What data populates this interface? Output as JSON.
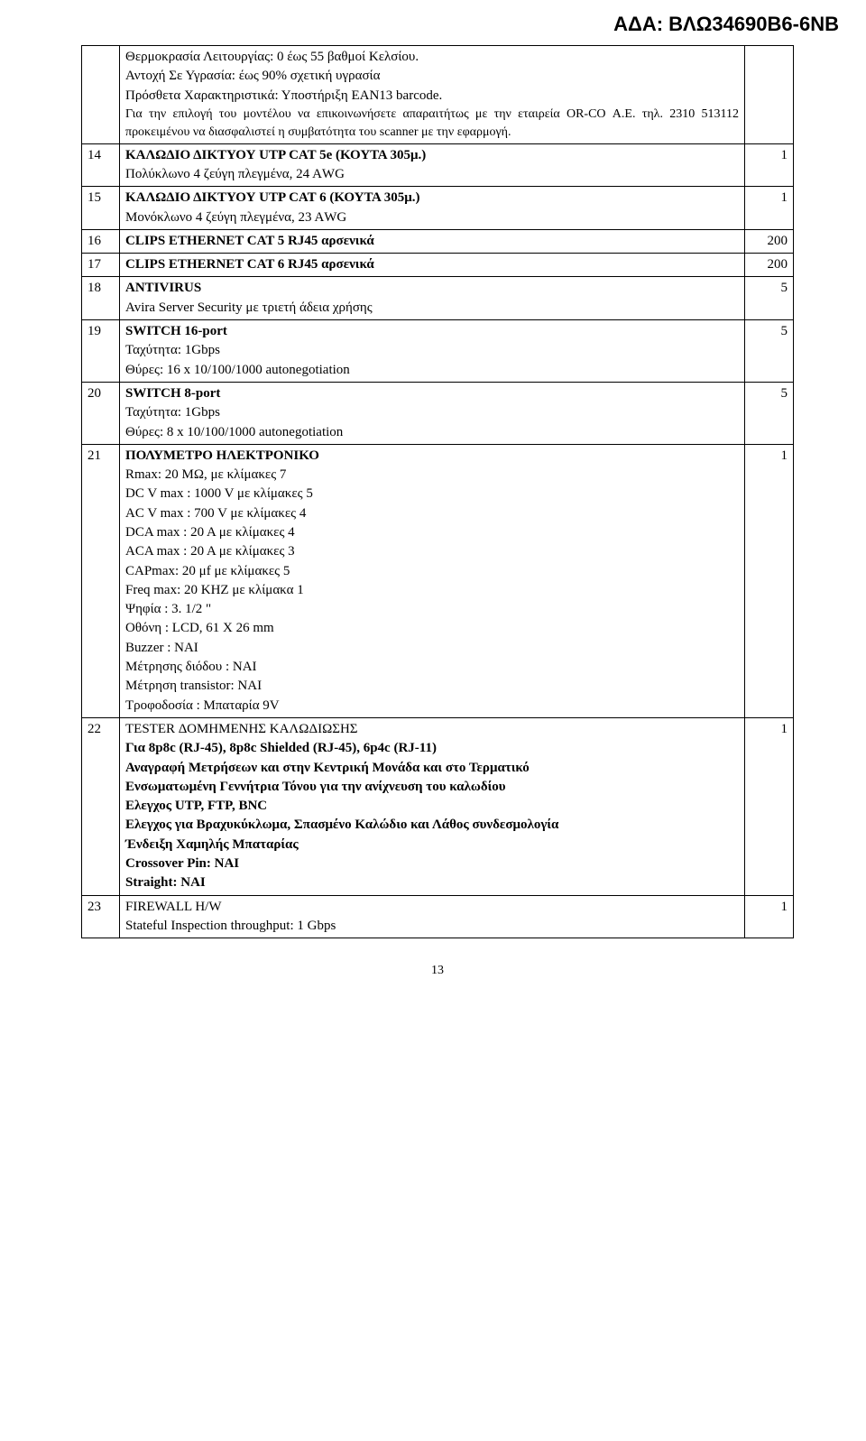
{
  "header_code": "ΑΔΑ: ΒΛΩ34690Β6-6ΝΒ",
  "page_number": "13",
  "rows": [
    {
      "num": "",
      "desc_html": "Θερμοκρασία Λειτουργίας: 0 έως 55 βαθμοί Κελσίου.\nΑντοχή Σε Υγρασία: έως 90% σχετική υγρασία\nΠρόσθετα Χαρακτηριστικά: Υποστήριξη ΕΑΝ13 barcode.\n<span class=\"small-note just\">Για την επιλογή του μοντέλου να επικοινωνήσετε απαραιτήτως με την εταιρεία OR-CO Α.Ε. τηλ. 2310 513112 προκειμένου να διασφαλιστεί η συμβατότητα του scanner με την εφαρμογή.</span>",
      "qty": ""
    },
    {
      "num": "14",
      "desc_html": "<span class=\"bold\">ΚΑΛΩΔΙΟ ΔΙΚΤΥΟΥ UTP CAT 5e (ΚΟΥΤΑ 305μ.)</span>\nΠολύκλωνο 4 ζεύγη πλεγμένα, 24 ΑWG",
      "qty": "1"
    },
    {
      "num": "15",
      "desc_html": "<span class=\"bold\">ΚΑΛΩΔΙΟ ΔΙΚΤΥΟΥ UTP CAT 6 (ΚΟΥΤΑ 305μ.)</span>\nΜονόκλωνο 4 ζεύγη πλεγμένα, 23 ΑWG",
      "qty": "1"
    },
    {
      "num": "16",
      "desc_html": "<span class=\"bold\">CLIPS ETHERNET CAT 5 RJ45 αρσενικά</span>",
      "qty": "200"
    },
    {
      "num": "17",
      "desc_html": "<span class=\"bold\">CLIPS ETHERNET CAT 6 RJ45 αρσενικά</span>",
      "qty": "200"
    },
    {
      "num": "18",
      "desc_html": "<span class=\"bold\">ANTIVIRUS</span>\nAvira Server Security με τριετή άδεια χρήσης",
      "qty": "5"
    },
    {
      "num": "19",
      "desc_html": "<span class=\"bold\">SWITCH 16-port</span>\nΤαχύτητα: 1Gbps\nΘύρες: 16 x 10/100/1000 autonegotiation",
      "qty": "5"
    },
    {
      "num": "20",
      "desc_html": "<span class=\"bold\">SWITCH 8-port</span>\nΤαχύτητα: 1Gbps\nΘύρες: 8 x 10/100/1000 autonegotiation",
      "qty": "5"
    },
    {
      "num": "21",
      "desc_html": "<span class=\"bold\">ΠΟΛΥΜΕΤΡΟ ΗΛΕΚΤΡΟΝΙΚΟ</span>\nRmax: 20 MΩ, με κλίμακες 7\nDC V max : 1000 V με κλίμακες 5\nAC V max : 700 V  με κλίμακες  4\nDCA max : 20 A με κλίμακες 4\nACΑ max : 20 A  με κλίμακες 3\nCAPmax:  20 μf με κλίμακες 5\nFreq max:  20 KHZ  με κλίμακα 1\nΨηφία : 3. 1/2 \"\nΟθόνη : LCD, 61  X 26 mm\nBuzzer : ΝΑΙ\nΜέτρησης διόδου : ΝΑΙ\nΜέτρηση transistor: NAI\nΤροφοδοσία : Μπαταρία 9V",
      "qty": "1"
    },
    {
      "num": "22",
      "desc_html": "TESTER ΔΟΜΗΜΕΝΗΣ ΚΑΛΩΔΙΩΣΗΣ\n<span class=\"bold\">Για 8p8c (RJ-45), 8p8c Shielded (RJ-45), 6p4c (RJ-11)</span>\n<span class=\"bold just\">Αναγραφή Μετρήσεων και στην Κεντρική Μονάδα και στο Τερματικό</span>\n<span class=\"bold just\">Ενσωματωμένη Γεννήτρια Τόνου για την ανίχνευση του καλωδίου</span>\n<span class=\"bold\">Ελεγχος UTP, FTP, BNC</span>\n<span class=\"bold just\">Ελεγχος για Βραχυκύκλωμα, Σπασμένο Καλώδιο και Λάθος συνδεσμολογία</span>\n<span class=\"bold\">Ένδειξη Χαμηλής Μπαταρίας</span>\n<span class=\"bold\">Crossover Pin: ΝΑΙ</span>\n<span class=\"bold\">Straight: ΝΑΙ</span>",
      "qty": "1"
    },
    {
      "num": "23",
      "desc_html": "FIREWALL H/W\nStateful Inspection throughput: 1 Gbps",
      "qty": "1"
    }
  ]
}
